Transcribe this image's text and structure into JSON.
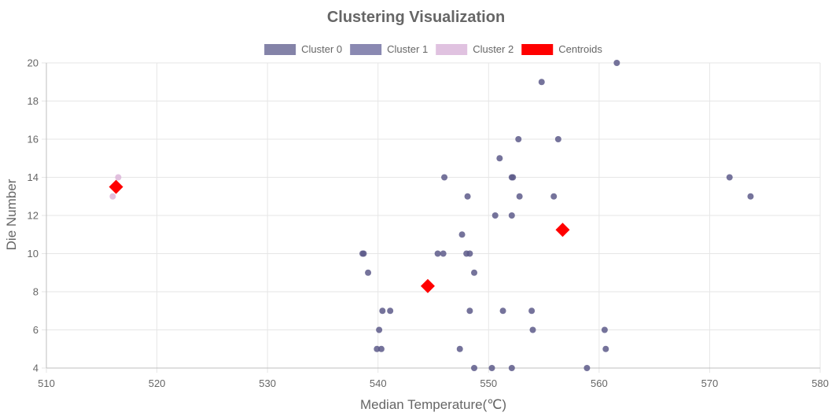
{
  "chart_data": {
    "type": "scatter",
    "title": "Clustering Visualization",
    "xlabel": "Median Temperature(℃)",
    "ylabel": "Die Number",
    "xlim": [
      510,
      580
    ],
    "ylim": [
      4,
      20
    ],
    "x_ticks": [
      "510",
      "520",
      "530",
      "540",
      "550",
      "560",
      "570",
      "580"
    ],
    "y_ticks": [
      "4",
      "6",
      "8",
      "10",
      "12",
      "14",
      "16",
      "18",
      "20"
    ],
    "grid": true,
    "legend_position": "top",
    "series": [
      {
        "name": "Cluster 0",
        "color": "#5d5b8a",
        "legend_color": "#8483a8",
        "points": [
          [
            561.6,
            20
          ],
          [
            554.8,
            19
          ],
          [
            552.7,
            16
          ],
          [
            556.3,
            16
          ],
          [
            551.0,
            15
          ],
          [
            546.0,
            14
          ],
          [
            552.2,
            14
          ],
          [
            552.1,
            14
          ],
          [
            571.8,
            14
          ],
          [
            573.7,
            13
          ],
          [
            548.1,
            13
          ],
          [
            552.8,
            13
          ],
          [
            555.9,
            13
          ],
          [
            550.6,
            12
          ],
          [
            552.1,
            12
          ],
          [
            547.6,
            11
          ],
          [
            538.7,
            10
          ],
          [
            538.6,
            10
          ],
          [
            545.4,
            10
          ],
          [
            545.9,
            10
          ],
          [
            548.0,
            10
          ],
          [
            548.3,
            10
          ],
          [
            539.1,
            9
          ],
          [
            548.7,
            9
          ],
          [
            540.4,
            7
          ],
          [
            541.1,
            7
          ],
          [
            548.3,
            7
          ],
          [
            551.3,
            7
          ],
          [
            553.9,
            7
          ],
          [
            540.1,
            6
          ],
          [
            554.0,
            6
          ],
          [
            560.5,
            6
          ],
          [
            539.9,
            5
          ],
          [
            540.3,
            5
          ],
          [
            547.4,
            5
          ],
          [
            560.6,
            5
          ],
          [
            548.7,
            4
          ],
          [
            550.3,
            4
          ],
          [
            552.1,
            4
          ],
          [
            558.9,
            4
          ]
        ]
      },
      {
        "name": "Cluster 1",
        "color": "#8a89b2",
        "legend_color": "#8a89b2",
        "points": []
      },
      {
        "name": "Cluster 2",
        "color": "#dcb5d8",
        "legend_color": "#e0c2e0",
        "points": [
          [
            516.5,
            14
          ],
          [
            516.0,
            13
          ]
        ]
      },
      {
        "name": "Centroids",
        "color": "#ff0000",
        "legend_color": "#ff0000",
        "marker": "diamond",
        "points": [
          [
            516.3,
            13.5
          ],
          [
            556.7,
            11.25
          ],
          [
            544.5,
            8.3
          ]
        ]
      }
    ]
  }
}
